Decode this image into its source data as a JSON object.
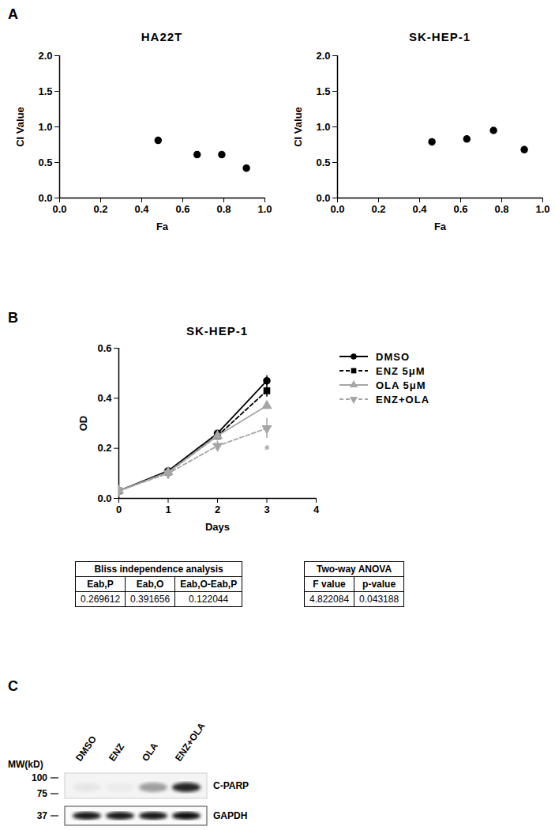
{
  "panel_labels": [
    "A",
    "B",
    "C"
  ],
  "chart_data": [
    {
      "type": "scatter",
      "title": "HA22T",
      "x_label": "Fa",
      "y_label": "CI Value",
      "x": [
        0.48,
        0.67,
        0.79,
        0.91
      ],
      "values": [
        0.81,
        0.61,
        0.61,
        0.42
      ],
      "color": "#000000",
      "marker": "circle",
      "xlim": [
        0,
        1
      ],
      "xticks": [
        {
          "value": 0,
          "label": "0.0"
        },
        0.2,
        0.4,
        0.6,
        0.8,
        {
          "value": 1,
          "label": "1.0"
        }
      ],
      "ylim": [
        0,
        2
      ],
      "yticks": [
        {
          "value": 0,
          "label": "0.0"
        },
        0.5,
        {
          "value": 1,
          "label": "1.0"
        },
        1.5,
        {
          "value": 2,
          "label": "2.0"
        }
      ]
    },
    {
      "type": "scatter",
      "title": "SK-HEP-1",
      "x_label": "Fa",
      "y_label": "CI Value",
      "x": [
        0.46,
        0.63,
        0.76,
        0.91
      ],
      "values": [
        0.79,
        0.83,
        0.95,
        0.68
      ],
      "color": "#000000",
      "marker": "circle",
      "xlim": [
        0,
        1
      ],
      "xticks": [
        {
          "value": 0,
          "label": "0.0"
        },
        0.2,
        0.4,
        0.6,
        0.8,
        {
          "value": 1,
          "label": "1.0"
        }
      ],
      "ylim": [
        0,
        2
      ],
      "yticks": [
        {
          "value": 0,
          "label": "0.0"
        },
        0.5,
        {
          "value": 1,
          "label": "1.0"
        },
        1.5,
        {
          "value": 2,
          "label": "2.0"
        }
      ]
    },
    {
      "type": "line",
      "title": "SK-HEP-1",
      "x_label": "Days",
      "y_label": "OD",
      "x": [
        0,
        1,
        2,
        3
      ],
      "series": [
        {
          "name": "DMSO",
          "color": "#000000",
          "line_style": "solid",
          "marker": "circle",
          "values": [
            0.03,
            0.11,
            0.26,
            0.47
          ],
          "errors": [
            0.003,
            0.005,
            0.01,
            0.02
          ]
        },
        {
          "name": "ENZ 5μM",
          "color": "#000000",
          "line_style": "dashed",
          "marker": "square",
          "values": [
            0.03,
            0.105,
            0.25,
            0.43
          ],
          "errors": [
            0.003,
            0.005,
            0.01,
            0.025
          ]
        },
        {
          "name": "OLA 5μM",
          "color": "#a6a6a6",
          "line_style": "solid",
          "marker": "triangle",
          "values": [
            0.03,
            0.105,
            0.25,
            0.37
          ],
          "errors": [
            0.003,
            0.005,
            0.01,
            0.015
          ]
        },
        {
          "name": "ENZ+OLA",
          "color": "#a6a6a6",
          "line_style": "dashed",
          "marker": "triangle-down",
          "values": [
            0.03,
            0.1,
            0.21,
            0.28
          ],
          "errors": [
            0.003,
            0.005,
            0.02,
            0.04
          ]
        }
      ],
      "xlim": [
        0,
        4
      ],
      "xticks": [
        0,
        1,
        2,
        3,
        4
      ],
      "ylim": [
        0,
        0.6
      ],
      "yticks": [
        {
          "value": 0,
          "label": "0.0"
        },
        0.2,
        0.4,
        0.6
      ],
      "legend": "right",
      "annotations": [
        {
          "text": "*",
          "x": 3,
          "series": "ENZ+OLA"
        }
      ]
    }
  ],
  "tables": [
    {
      "title": "Bliss independence analysis",
      "header": [
        "Eab,P",
        "Eab,O",
        "Eab,O-Eab,P"
      ],
      "rows": [
        [
          "0.269612",
          "0.391656",
          "0.122044"
        ]
      ]
    },
    {
      "title": "Two-way ANOVA",
      "header": [
        "F value",
        "p-value"
      ],
      "rows": [
        [
          "4.822084",
          "0.043188"
        ]
      ]
    }
  ],
  "blot": {
    "mw_label": "MW(kD)",
    "mw_markers": [
      100,
      75,
      37
    ],
    "lanes": [
      "DMSO",
      "ENZ",
      "OLA",
      "ENZ+OLA"
    ],
    "bands": [
      {
        "name": "C-PARP",
        "signal": [
          0.05,
          0.03,
          0.35,
          0.85
        ]
      },
      {
        "name": "GAPDH",
        "signal": [
          0.9,
          0.9,
          0.9,
          0.95
        ]
      }
    ]
  }
}
